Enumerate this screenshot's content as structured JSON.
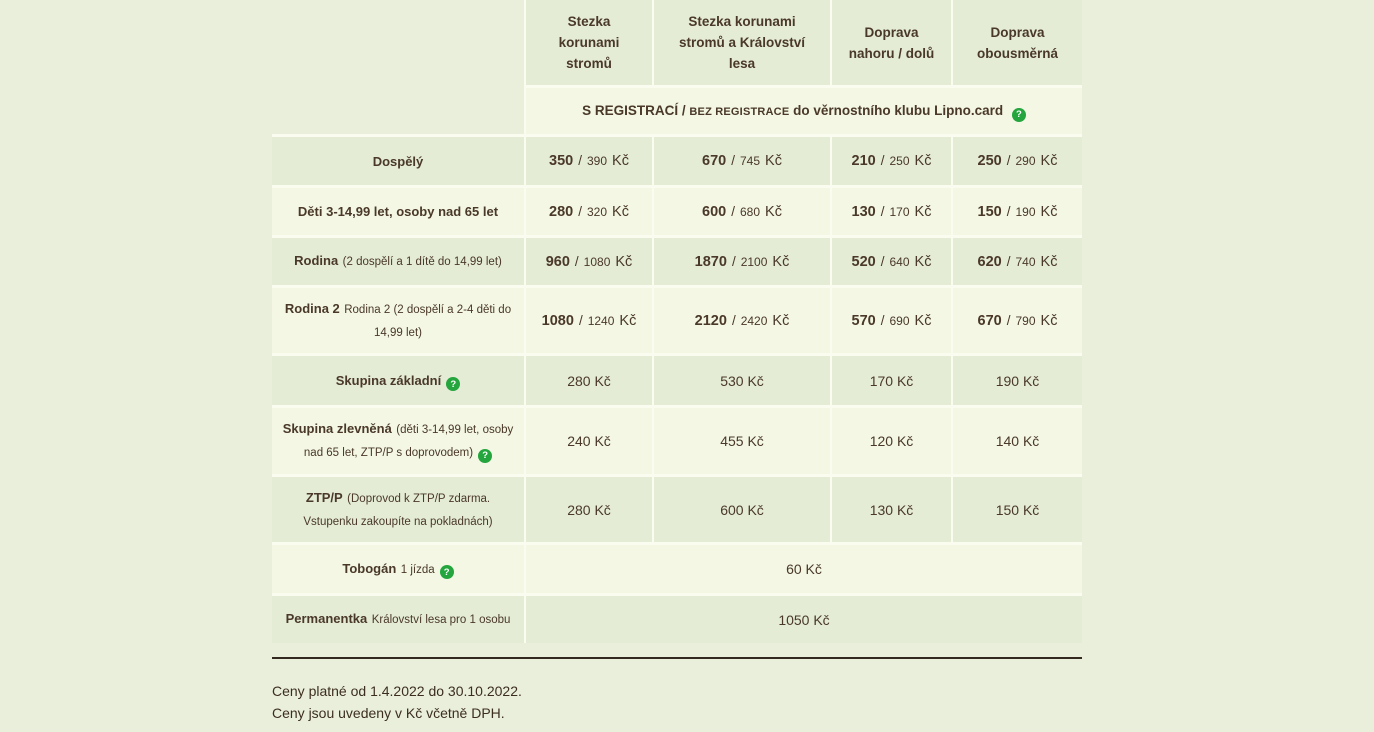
{
  "meta": {
    "price_separator": "/"
  },
  "icons": {
    "help": "?"
  },
  "colors": {
    "accent_green": "#24a53d",
    "text_brown": "#4a3829",
    "row_dark": "#e4ecd6",
    "row_light": "#f3f7e4",
    "page_background": "#eaefdc"
  },
  "header": {
    "columns": [
      "Stezka korunami stromů",
      "Stezka korunami stromů a Království lesa",
      "Doprava nahoru / dolů",
      "Doprava obousměrná"
    ]
  },
  "subheader": {
    "registered": "S REGISTRACÍ",
    "separator": "/",
    "unregistered": "BEZ REGISTRACE",
    "suffix": "do věrnostního klubu Lipno.card"
  },
  "rows": [
    {
      "label": "Dospělý",
      "prices": [
        {
          "registered": "350",
          "unregistered": "390",
          "currency": "Kč"
        },
        {
          "registered": "670",
          "unregistered": "745",
          "currency": "Kč"
        },
        {
          "registered": "210",
          "unregistered": "250",
          "currency": "Kč"
        },
        {
          "registered": "250",
          "unregistered": "290",
          "currency": "Kč"
        }
      ]
    },
    {
      "label": "Děti 3-14,99 let, osoby nad 65 let",
      "prices": [
        {
          "registered": "280",
          "unregistered": "320",
          "currency": "Kč"
        },
        {
          "registered": "600",
          "unregistered": "680",
          "currency": "Kč"
        },
        {
          "registered": "130",
          "unregistered": "170",
          "currency": "Kč"
        },
        {
          "registered": "150",
          "unregistered": "190",
          "currency": "Kč"
        }
      ]
    },
    {
      "label": "Rodina",
      "note": "(2 dospělí a 1 dítě do 14,99 let)",
      "prices": [
        {
          "registered": "960",
          "unregistered": "1080",
          "currency": "Kč"
        },
        {
          "registered": "1870",
          "unregistered": "2100",
          "currency": "Kč"
        },
        {
          "registered": "520",
          "unregistered": "640",
          "currency": "Kč"
        },
        {
          "registered": "620",
          "unregistered": "740",
          "currency": "Kč"
        }
      ]
    },
    {
      "label": "Rodina 2",
      "note": "Rodina 2 (2 dospělí a 2-4 děti do 14,99 let)",
      "prices": [
        {
          "registered": "1080",
          "unregistered": "1240",
          "currency": "Kč"
        },
        {
          "registered": "2120",
          "unregistered": "2420",
          "currency": "Kč"
        },
        {
          "registered": "570",
          "unregistered": "690",
          "currency": "Kč"
        },
        {
          "registered": "670",
          "unregistered": "790",
          "currency": "Kč"
        }
      ]
    },
    {
      "label": "Skupina základní",
      "has_help": true,
      "prices": [
        {
          "value": "280 Kč"
        },
        {
          "value": "530 Kč"
        },
        {
          "value": "170 Kč"
        },
        {
          "value": "190 Kč"
        }
      ]
    },
    {
      "label": "Skupina zlevněná",
      "note": "(děti 3-14,99 let, osoby nad 65 let, ZTP/P s doprovodem)",
      "has_help": true,
      "prices": [
        {
          "value": "240 Kč"
        },
        {
          "value": "455 Kč"
        },
        {
          "value": "120 Kč"
        },
        {
          "value": "140 Kč"
        }
      ]
    },
    {
      "label": "ZTP/P",
      "note": "(Doprovod k ZTP/P zdarma. Vstupenku zakoupíte na pokladnách)",
      "prices": [
        {
          "value": "280 Kč"
        },
        {
          "value": "600 Kč"
        },
        {
          "value": "130 Kč"
        },
        {
          "value": "150 Kč"
        }
      ]
    },
    {
      "label": "Tobogán",
      "note": "1 jízda",
      "has_help": true,
      "merged_price": "60 Kč"
    },
    {
      "label": "Permanentka",
      "note": "Království lesa pro 1 osobu",
      "merged_price": "1050 Kč"
    }
  ],
  "footer": {
    "line1": "Ceny platné od 1.4.2022 do 30.10.2022.",
    "line2": "Ceny jsou uvedeny v Kč včetně DPH."
  }
}
